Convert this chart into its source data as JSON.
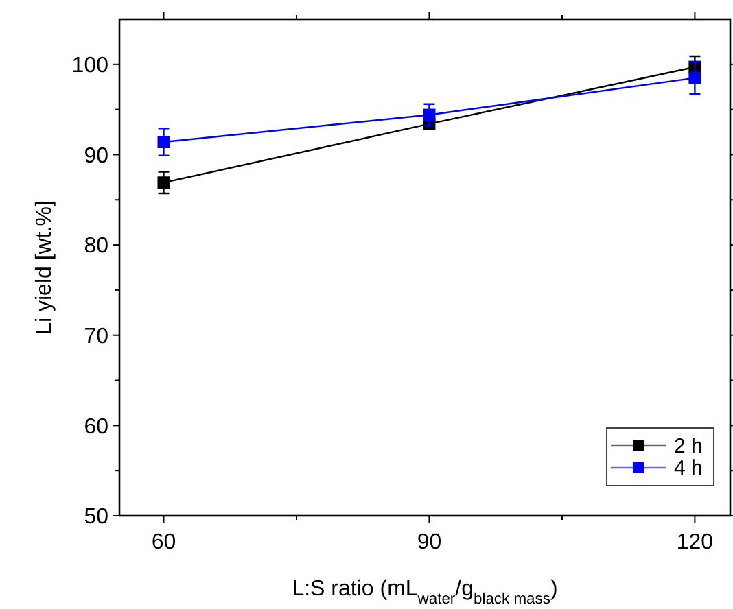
{
  "chart_data": {
    "type": "line",
    "xlabel": "L:S ratio (mL$_{water}$/g$_{black mass}$)",
    "ylabel": "Li yield [wt.%]",
    "x": [
      60,
      90,
      120
    ],
    "series": [
      {
        "name": "2 h",
        "color": "#000000",
        "values": [
          86.9,
          93.4,
          99.7
        ],
        "errors": [
          1.2,
          0.3,
          1.2
        ]
      },
      {
        "name": "4 h",
        "color": "#0000ff",
        "values": [
          91.4,
          94.4,
          98.5
        ],
        "errors": [
          1.5,
          1.2,
          1.8
        ]
      }
    ],
    "xlim": [
      55,
      124
    ],
    "xticks": [
      60,
      {
        "value": 75,
        "label": null
      },
      90,
      {
        "value": 105,
        "label": null
      },
      120
    ],
    "ylim": [
      50,
      105
    ],
    "yticks": [
      50,
      {
        "value": 55,
        "label": null
      },
      60,
      {
        "value": 65,
        "label": null
      },
      70,
      {
        "value": 75,
        "label": null
      },
      80,
      {
        "value": 85,
        "label": null
      },
      90,
      {
        "value": 95,
        "label": null
      },
      100
    ],
    "legend": "bottom right",
    "marker": "square",
    "line_style": "solid",
    "grid": false
  }
}
